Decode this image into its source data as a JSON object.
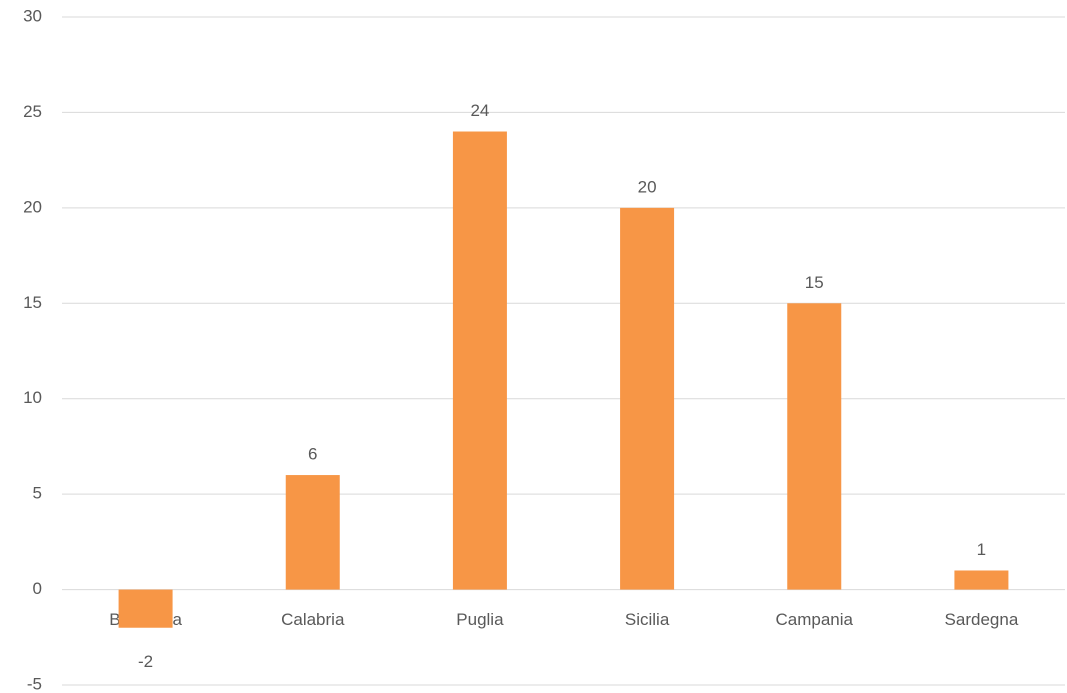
{
  "chart_data": {
    "type": "bar",
    "categories": [
      "Basilicata",
      "Calabria",
      "Puglia",
      "Sicilia",
      "Campania",
      "Sardegna"
    ],
    "values": [
      -2,
      6,
      24,
      20,
      15,
      1
    ],
    "color": "#f79646",
    "ylim": [
      -5,
      30
    ],
    "yticks": [
      -5,
      0,
      5,
      10,
      15,
      20,
      25,
      30
    ],
    "grid": true
  }
}
